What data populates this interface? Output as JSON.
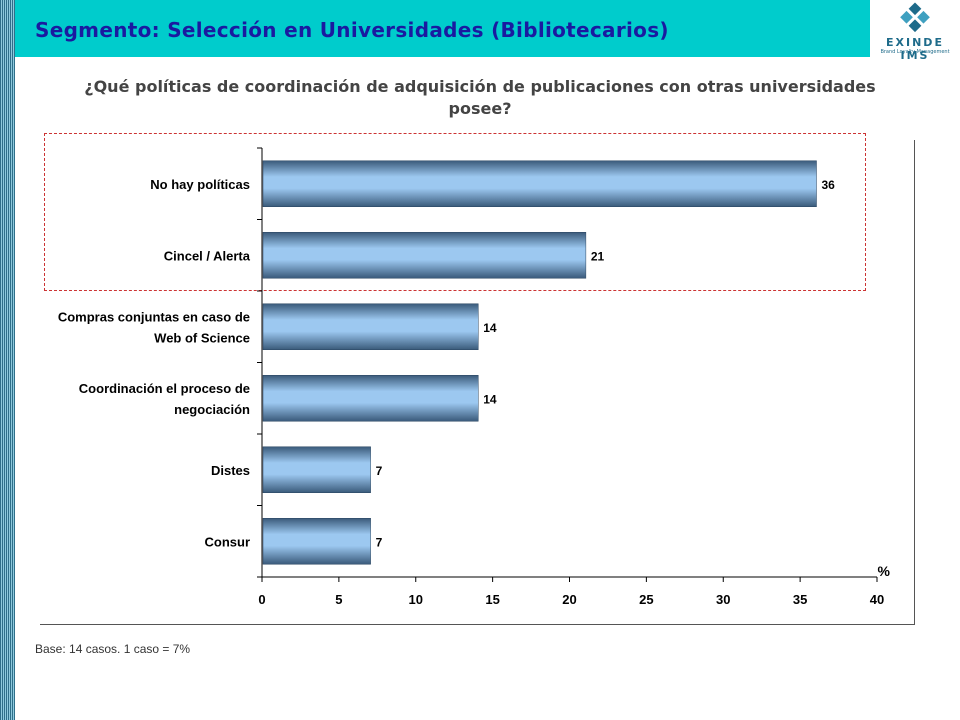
{
  "header": {
    "title": "Segmento: Selección en Universidades (Bibliotecarios)",
    "logo_text": "EXINDE IMS",
    "logo_subtext": "Brand Loyalty Management"
  },
  "question": "¿Qué políticas de coordinación de adquisición de publicaciones con otras universidades posee?",
  "footer": {
    "base_note": "Base: 14 casos. 1 caso = 7%"
  },
  "colors": {
    "header_bg": "#00cccc",
    "title_color": "#1a1aa0",
    "bar_light": "#9cc8f0",
    "bar_dark": "#3a5a7a",
    "highlight_border": "#cc3333"
  },
  "chart_data": {
    "type": "bar",
    "orientation": "horizontal",
    "categories": [
      [
        "No hay políticas"
      ],
      [
        "Cincel  / Alerta"
      ],
      [
        "Compras conjuntas en caso de",
        "Web of Science"
      ],
      [
        "Coordinación el proceso de",
        "negociación"
      ],
      [
        "Distes"
      ],
      [
        "Consur"
      ]
    ],
    "values": [
      36,
      21,
      14,
      14,
      7,
      7
    ],
    "data_labels": [
      "36",
      "21",
      "14",
      "14",
      "7",
      "7"
    ],
    "xlim": [
      0,
      40
    ],
    "xticks": [
      0,
      5,
      10,
      15,
      20,
      25,
      30,
      35,
      40
    ],
    "unit_label": "%",
    "highlighted_categories": [
      0,
      1
    ],
    "grid": false,
    "legend": "none"
  }
}
